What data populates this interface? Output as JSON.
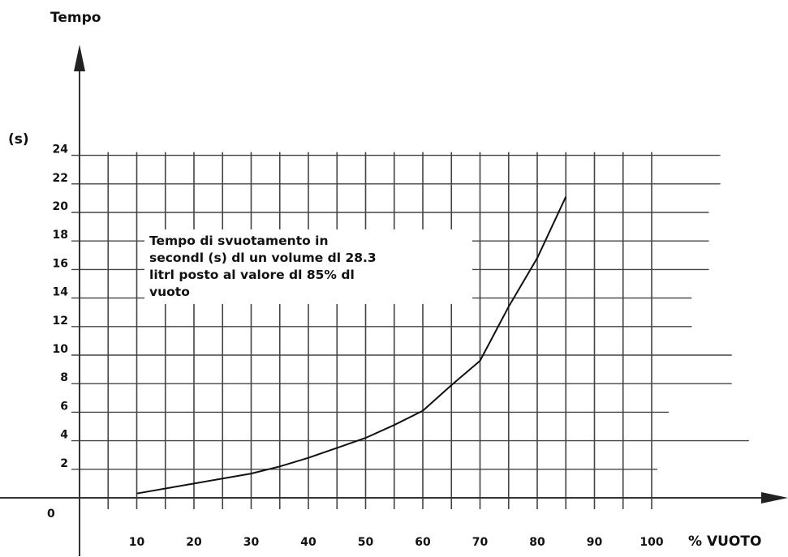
{
  "chart_data": {
    "type": "line",
    "title": "",
    "ylabel": "Tempo",
    "yunit": "(s)",
    "xlabel": "% VUOTO",
    "origin_label": "0",
    "x_ticks": [
      "10",
      "20",
      "30",
      "40",
      "50",
      "60",
      "70",
      "80",
      "90",
      "100"
    ],
    "y_ticks": [
      "2",
      "4",
      "6",
      "8",
      "10",
      "12",
      "14",
      "16",
      "18",
      "20",
      "22",
      "24"
    ],
    "xlim": [
      0,
      100
    ],
    "ylim": [
      0,
      24
    ],
    "grid": true,
    "annotation": "Tempo di svuotamento in\nsecondl (s) dl un volume dl 28.3\nlitrl  posto al valore dl 85% dl\nvuoto",
    "series": [
      {
        "x": [
          10,
          20,
          30,
          35,
          40,
          45,
          50,
          55,
          60,
          65,
          70,
          75,
          80,
          85
        ],
        "y": [
          0.3,
          1.0,
          1.7,
          2.2,
          2.8,
          3.5,
          4.2,
          5.1,
          6.1,
          7.9,
          9.6,
          13.4,
          16.8,
          21.1
        ]
      }
    ],
    "colors": {
      "line": "#111111",
      "grid": "#444444",
      "axis": "#333333"
    }
  }
}
